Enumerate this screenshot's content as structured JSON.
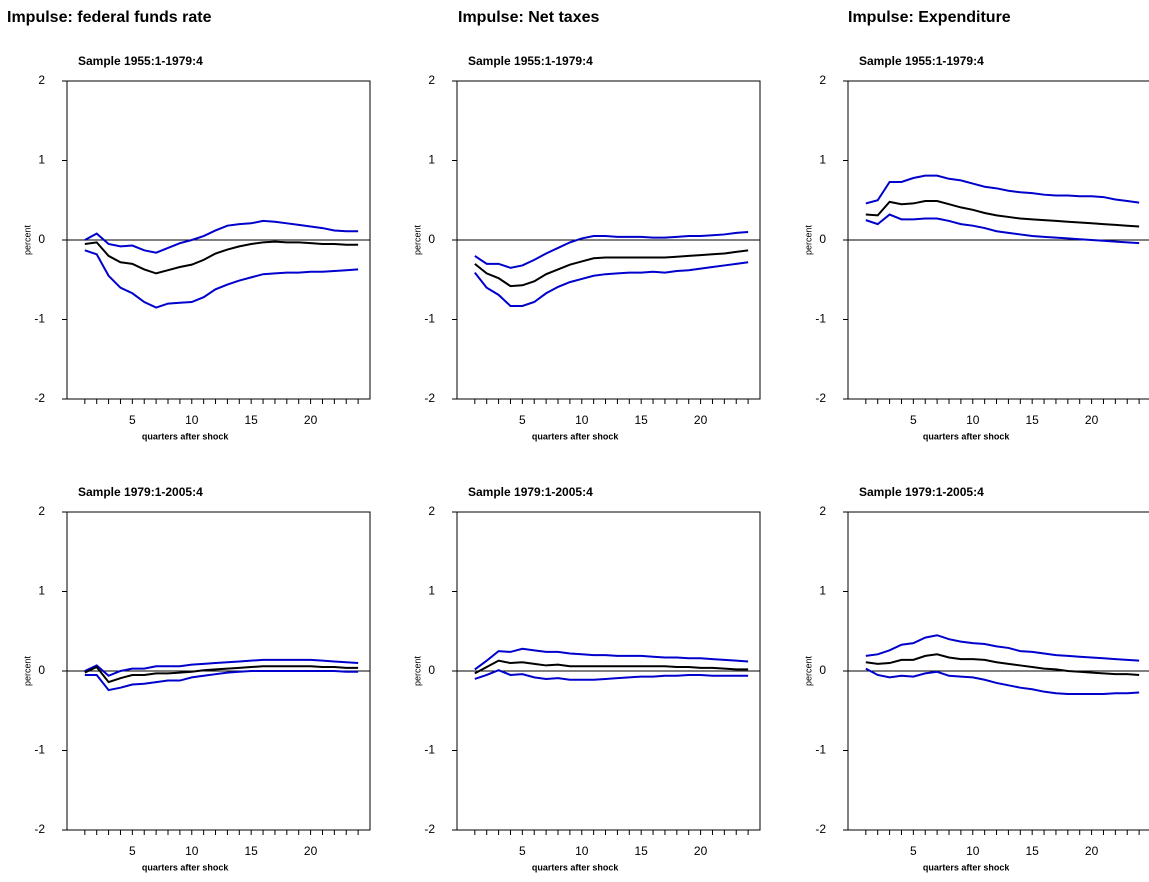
{
  "headings": [
    "Impulse: federal funds rate",
    "Impulse: Net taxes",
    "Impulse: Expenditure"
  ],
  "chart_data": [
    {
      "type": "line",
      "title": "Sample 1955:1-1979:4",
      "x_label": "quarters after shock",
      "y_label": "percent",
      "x": [
        1,
        2,
        3,
        4,
        5,
        6,
        7,
        8,
        9,
        10,
        11,
        12,
        13,
        14,
        15,
        16,
        17,
        18,
        19,
        20,
        21,
        22,
        23,
        24
      ],
      "xlim": [
        -0.5,
        25
      ],
      "xticks": [
        5,
        10,
        15,
        20
      ],
      "ylim": [
        -2,
        2
      ],
      "yticks": [
        -2,
        -1,
        0,
        1,
        2
      ],
      "series": [
        {
          "color": "#0000cc",
          "values": [
            0.0,
            0.08,
            -0.05,
            -0.08,
            -0.07,
            -0.13,
            -0.16,
            -0.1,
            -0.04,
            0.0,
            0.05,
            0.12,
            0.18,
            0.2,
            0.21,
            0.24,
            0.23,
            0.21,
            0.19,
            0.17,
            0.15,
            0.12,
            0.11,
            0.11
          ]
        },
        {
          "color": "#000000",
          "values": [
            -0.05,
            -0.03,
            -0.2,
            -0.28,
            -0.3,
            -0.37,
            -0.42,
            -0.38,
            -0.34,
            -0.31,
            -0.25,
            -0.17,
            -0.12,
            -0.08,
            -0.05,
            -0.03,
            -0.02,
            -0.03,
            -0.03,
            -0.04,
            -0.05,
            -0.05,
            -0.06,
            -0.06
          ]
        },
        {
          "color": "#0000cc",
          "values": [
            -0.13,
            -0.18,
            -0.45,
            -0.6,
            -0.67,
            -0.78,
            -0.85,
            -0.8,
            -0.79,
            -0.78,
            -0.72,
            -0.62,
            -0.56,
            -0.51,
            -0.47,
            -0.43,
            -0.42,
            -0.41,
            -0.41,
            -0.4,
            -0.4,
            -0.39,
            -0.38,
            -0.37
          ]
        }
      ]
    },
    {
      "type": "line",
      "title": "Sample 1955:1-1979:4",
      "x_label": "quarters after shock",
      "y_label": "percent",
      "x": [
        1,
        2,
        3,
        4,
        5,
        6,
        7,
        8,
        9,
        10,
        11,
        12,
        13,
        14,
        15,
        16,
        17,
        18,
        19,
        20,
        21,
        22,
        23,
        24
      ],
      "xlim": [
        -0.5,
        25
      ],
      "xticks": [
        5,
        10,
        15,
        20
      ],
      "ylim": [
        -2,
        2
      ],
      "yticks": [
        -2,
        -1,
        0,
        1,
        2
      ],
      "series": [
        {
          "color": "#0000cc",
          "values": [
            -0.2,
            -0.3,
            -0.3,
            -0.35,
            -0.32,
            -0.25,
            -0.17,
            -0.1,
            -0.03,
            0.02,
            0.05,
            0.05,
            0.04,
            0.04,
            0.04,
            0.03,
            0.03,
            0.04,
            0.05,
            0.05,
            0.06,
            0.07,
            0.09,
            0.1
          ]
        },
        {
          "color": "#000000",
          "values": [
            -0.3,
            -0.42,
            -0.48,
            -0.58,
            -0.57,
            -0.52,
            -0.43,
            -0.37,
            -0.31,
            -0.27,
            -0.23,
            -0.22,
            -0.22,
            -0.22,
            -0.22,
            -0.22,
            -0.22,
            -0.21,
            -0.2,
            -0.19,
            -0.18,
            -0.17,
            -0.15,
            -0.13
          ]
        },
        {
          "color": "#0000cc",
          "values": [
            -0.41,
            -0.6,
            -0.69,
            -0.83,
            -0.83,
            -0.78,
            -0.67,
            -0.59,
            -0.53,
            -0.49,
            -0.45,
            -0.43,
            -0.42,
            -0.41,
            -0.41,
            -0.4,
            -0.41,
            -0.39,
            -0.38,
            -0.36,
            -0.34,
            -0.32,
            -0.3,
            -0.28
          ]
        }
      ]
    },
    {
      "type": "line",
      "title": "Sample 1955:1-1979:4",
      "x_label": "quarters after shock",
      "y_label": "percent",
      "x": [
        1,
        2,
        3,
        4,
        5,
        6,
        7,
        8,
        9,
        10,
        11,
        12,
        13,
        14,
        15,
        16,
        17,
        18,
        19,
        20,
        21,
        22,
        23,
        24
      ],
      "xlim": [
        -0.5,
        25
      ],
      "xticks": [
        5,
        10,
        15,
        20
      ],
      "ylim": [
        -2,
        2
      ],
      "yticks": [
        -2,
        -1,
        0,
        1,
        2
      ],
      "series": [
        {
          "color": "#0000cc",
          "values": [
            0.46,
            0.5,
            0.73,
            0.73,
            0.78,
            0.81,
            0.81,
            0.77,
            0.75,
            0.71,
            0.67,
            0.65,
            0.62,
            0.6,
            0.59,
            0.57,
            0.56,
            0.56,
            0.55,
            0.55,
            0.54,
            0.51,
            0.49,
            0.47
          ]
        },
        {
          "color": "#000000",
          "values": [
            0.32,
            0.31,
            0.48,
            0.45,
            0.46,
            0.49,
            0.49,
            0.45,
            0.41,
            0.38,
            0.34,
            0.31,
            0.29,
            0.27,
            0.26,
            0.25,
            0.24,
            0.23,
            0.22,
            0.21,
            0.2,
            0.19,
            0.18,
            0.17
          ]
        },
        {
          "color": "#0000cc",
          "values": [
            0.25,
            0.2,
            0.32,
            0.26,
            0.26,
            0.27,
            0.27,
            0.24,
            0.2,
            0.18,
            0.15,
            0.11,
            0.09,
            0.07,
            0.05,
            0.04,
            0.03,
            0.02,
            0.01,
            0.0,
            -0.01,
            -0.02,
            -0.03,
            -0.04
          ]
        }
      ]
    },
    {
      "type": "line",
      "title": "Sample 1979:1-2005:4",
      "x_label": "quarters after shock",
      "y_label": "percent",
      "x": [
        1,
        2,
        3,
        4,
        5,
        6,
        7,
        8,
        9,
        10,
        11,
        12,
        13,
        14,
        15,
        16,
        17,
        18,
        19,
        20,
        21,
        22,
        23,
        24
      ],
      "xlim": [
        -0.5,
        25
      ],
      "xticks": [
        5,
        10,
        15,
        20
      ],
      "ylim": [
        -2,
        2
      ],
      "yticks": [
        -2,
        -1,
        0,
        1,
        2
      ],
      "series": [
        {
          "color": "#0000cc",
          "values": [
            0.0,
            0.07,
            -0.06,
            0.0,
            0.03,
            0.03,
            0.06,
            0.06,
            0.06,
            0.08,
            0.09,
            0.1,
            0.11,
            0.12,
            0.13,
            0.14,
            0.14,
            0.14,
            0.14,
            0.14,
            0.13,
            0.12,
            0.11,
            0.1
          ]
        },
        {
          "color": "#000000",
          "values": [
            -0.02,
            0.05,
            -0.14,
            -0.09,
            -0.05,
            -0.05,
            -0.03,
            -0.03,
            -0.02,
            -0.01,
            0.01,
            0.02,
            0.03,
            0.04,
            0.05,
            0.06,
            0.06,
            0.06,
            0.06,
            0.06,
            0.05,
            0.05,
            0.04,
            0.04
          ]
        },
        {
          "color": "#0000cc",
          "values": [
            -0.05,
            -0.05,
            -0.24,
            -0.21,
            -0.17,
            -0.16,
            -0.14,
            -0.12,
            -0.12,
            -0.08,
            -0.06,
            -0.04,
            -0.02,
            -0.01,
            0.0,
            0.0,
            0.0,
            0.0,
            0.0,
            0.0,
            0.0,
            0.0,
            -0.01,
            -0.01
          ]
        }
      ]
    },
    {
      "type": "line",
      "title": "Sample 1979:1-2005:4",
      "x_label": "quarters after shock",
      "y_label": "percent",
      "x": [
        1,
        2,
        3,
        4,
        5,
        6,
        7,
        8,
        9,
        10,
        11,
        12,
        13,
        14,
        15,
        16,
        17,
        18,
        19,
        20,
        21,
        22,
        23,
        24
      ],
      "xlim": [
        -0.5,
        25
      ],
      "xticks": [
        5,
        10,
        15,
        20
      ],
      "ylim": [
        -2,
        2
      ],
      "yticks": [
        -2,
        -1,
        0,
        1,
        2
      ],
      "series": [
        {
          "color": "#0000cc",
          "values": [
            0.02,
            0.13,
            0.25,
            0.24,
            0.28,
            0.26,
            0.24,
            0.24,
            0.22,
            0.21,
            0.2,
            0.2,
            0.19,
            0.19,
            0.19,
            0.18,
            0.17,
            0.17,
            0.16,
            0.16,
            0.15,
            0.14,
            0.13,
            0.12
          ]
        },
        {
          "color": "#000000",
          "values": [
            -0.03,
            0.05,
            0.13,
            0.1,
            0.11,
            0.09,
            0.07,
            0.08,
            0.06,
            0.06,
            0.06,
            0.06,
            0.06,
            0.06,
            0.06,
            0.06,
            0.06,
            0.05,
            0.05,
            0.04,
            0.04,
            0.03,
            0.02,
            0.02
          ]
        },
        {
          "color": "#0000cc",
          "values": [
            -0.1,
            -0.05,
            0.01,
            -0.05,
            -0.04,
            -0.08,
            -0.1,
            -0.09,
            -0.11,
            -0.11,
            -0.11,
            -0.1,
            -0.09,
            -0.08,
            -0.07,
            -0.07,
            -0.06,
            -0.06,
            -0.05,
            -0.05,
            -0.06,
            -0.06,
            -0.06,
            -0.06
          ]
        }
      ]
    },
    {
      "type": "line",
      "title": "Sample 1979:1-2005:4",
      "x_label": "quarters after shock",
      "y_label": "percent",
      "x": [
        1,
        2,
        3,
        4,
        5,
        6,
        7,
        8,
        9,
        10,
        11,
        12,
        13,
        14,
        15,
        16,
        17,
        18,
        19,
        20,
        21,
        22,
        23,
        24
      ],
      "xlim": [
        -0.5,
        25
      ],
      "xticks": [
        5,
        10,
        15,
        20
      ],
      "ylim": [
        -2,
        2
      ],
      "yticks": [
        -2,
        -1,
        0,
        1,
        2
      ],
      "series": [
        {
          "color": "#0000cc",
          "values": [
            0.19,
            0.21,
            0.26,
            0.33,
            0.35,
            0.42,
            0.45,
            0.4,
            0.37,
            0.35,
            0.34,
            0.31,
            0.29,
            0.25,
            0.24,
            0.22,
            0.2,
            0.19,
            0.18,
            0.17,
            0.16,
            0.15,
            0.14,
            0.13
          ]
        },
        {
          "color": "#000000",
          "values": [
            0.11,
            0.09,
            0.1,
            0.14,
            0.14,
            0.19,
            0.21,
            0.17,
            0.15,
            0.15,
            0.14,
            0.11,
            0.09,
            0.07,
            0.05,
            0.03,
            0.02,
            0.0,
            -0.01,
            -0.02,
            -0.03,
            -0.04,
            -0.04,
            -0.05
          ]
        },
        {
          "color": "#0000cc",
          "values": [
            0.03,
            -0.05,
            -0.08,
            -0.06,
            -0.07,
            -0.03,
            -0.01,
            -0.06,
            -0.07,
            -0.08,
            -0.11,
            -0.15,
            -0.18,
            -0.21,
            -0.23,
            -0.26,
            -0.28,
            -0.29,
            -0.29,
            -0.29,
            -0.29,
            -0.28,
            -0.28,
            -0.27
          ]
        }
      ]
    }
  ]
}
